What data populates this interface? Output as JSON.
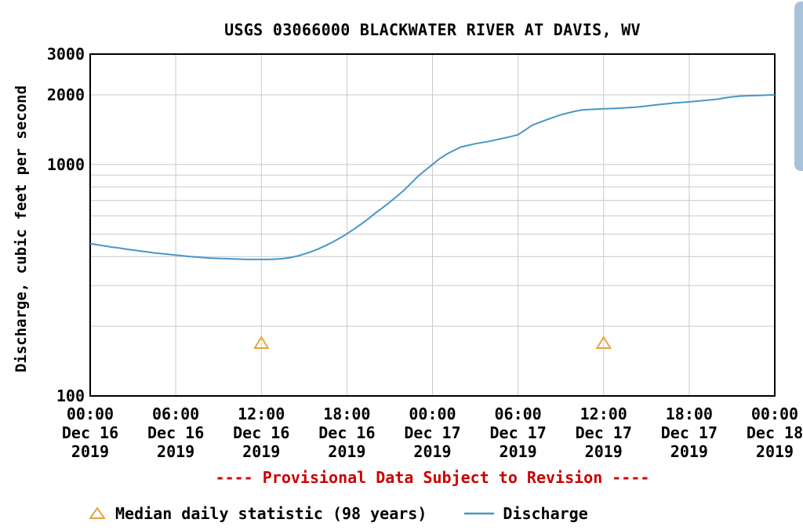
{
  "colors": {
    "background": "#ffffff",
    "text": "#000000",
    "axis": "#000000",
    "grid": "#c9c9c9",
    "discharge_line": "#4896c8",
    "median_marker": "#e8a43f",
    "provisional_red": "#cc0000",
    "scrollbar_thumb": "#a9c2db"
  },
  "provisional_note": "---- Provisional Data Subject to Revision ----",
  "scrollbar": {
    "present": true
  },
  "chart_data": {
    "type": "line",
    "title": "USGS 03066000 BLACKWATER RIVER AT DAVIS, WV",
    "xlabel": "",
    "ylabel": "Discharge, cubic feet per second",
    "yscale": "log",
    "ylim": [
      100,
      3000
    ],
    "x_range_hours": [
      0,
      48
    ],
    "grid": true,
    "legend_position": "bottom",
    "y_tick_labels": [
      {
        "value": 3000,
        "label": "3000"
      },
      {
        "value": 2000,
        "label": "2000"
      },
      {
        "value": 1000,
        "label": "1000"
      },
      {
        "value": 100,
        "label": "100"
      }
    ],
    "y_gridlines": [
      200,
      300,
      400,
      500,
      600,
      700,
      800,
      900,
      1000,
      2000
    ],
    "x_ticks": [
      {
        "hour": 0,
        "time": "00:00",
        "date": "Dec 16",
        "year": "2019"
      },
      {
        "hour": 6,
        "time": "06:00",
        "date": "Dec 16",
        "year": "2019"
      },
      {
        "hour": 12,
        "time": "12:00",
        "date": "Dec 16",
        "year": "2019"
      },
      {
        "hour": 18,
        "time": "18:00",
        "date": "Dec 16",
        "year": "2019"
      },
      {
        "hour": 24,
        "time": "00:00",
        "date": "Dec 17",
        "year": "2019"
      },
      {
        "hour": 30,
        "time": "06:00",
        "date": "Dec 17",
        "year": "2019"
      },
      {
        "hour": 36,
        "time": "12:00",
        "date": "Dec 17",
        "year": "2019"
      },
      {
        "hour": 42,
        "time": "18:00",
        "date": "Dec 17",
        "year": "2019"
      },
      {
        "hour": 48,
        "time": "00:00",
        "date": "Dec 18",
        "year": "2019"
      }
    ],
    "series": [
      {
        "name": "Discharge",
        "marker": "line",
        "color": "#4896c8",
        "units": "cubic feet per second",
        "points": [
          [
            0,
            455
          ],
          [
            0.5,
            450
          ],
          [
            1,
            445
          ],
          [
            1.5,
            440
          ],
          [
            2,
            436
          ],
          [
            2.5,
            431
          ],
          [
            3,
            427
          ],
          [
            3.5,
            423
          ],
          [
            4,
            419
          ],
          [
            4.5,
            415
          ],
          [
            5,
            412
          ],
          [
            5.5,
            409
          ],
          [
            6,
            406
          ],
          [
            6.5,
            403
          ],
          [
            7,
            400
          ],
          [
            7.5,
            398
          ],
          [
            8,
            396
          ],
          [
            8.5,
            394
          ],
          [
            9,
            393
          ],
          [
            9.5,
            392
          ],
          [
            10,
            391
          ],
          [
            10.5,
            390
          ],
          [
            11,
            389
          ],
          [
            11.5,
            389
          ],
          [
            12,
            389
          ],
          [
            12.5,
            389
          ],
          [
            13,
            390
          ],
          [
            13.5,
            392
          ],
          [
            14,
            396
          ],
          [
            14.5,
            402
          ],
          [
            15,
            410
          ],
          [
            15.5,
            420
          ],
          [
            16,
            432
          ],
          [
            16.5,
            446
          ],
          [
            17,
            462
          ],
          [
            17.5,
            481
          ],
          [
            18,
            502
          ],
          [
            18.5,
            526
          ],
          [
            19,
            553
          ],
          [
            19.5,
            583
          ],
          [
            20,
            617
          ],
          [
            20.5,
            650
          ],
          [
            21,
            687
          ],
          [
            21.5,
            728
          ],
          [
            22,
            774
          ],
          [
            22.5,
            830
          ],
          [
            23,
            891
          ],
          [
            23.5,
            945
          ],
          [
            24,
            1000
          ],
          [
            24.5,
            1060
          ],
          [
            25,
            1110
          ],
          [
            25.5,
            1150
          ],
          [
            26,
            1190
          ],
          [
            26.5,
            1210
          ],
          [
            27,
            1230
          ],
          [
            27.5,
            1245
          ],
          [
            28,
            1260
          ],
          [
            28.5,
            1280
          ],
          [
            29,
            1300
          ],
          [
            29.5,
            1320
          ],
          [
            30,
            1345
          ],
          [
            30.5,
            1410
          ],
          [
            31,
            1480
          ],
          [
            31.5,
            1520
          ],
          [
            32,
            1560
          ],
          [
            32.5,
            1600
          ],
          [
            33,
            1640
          ],
          [
            33.5,
            1670
          ],
          [
            34,
            1700
          ],
          [
            34.5,
            1720
          ],
          [
            35,
            1730
          ],
          [
            35.5,
            1735
          ],
          [
            36,
            1740
          ],
          [
            36.5,
            1745
          ],
          [
            37,
            1750
          ],
          [
            37.5,
            1757
          ],
          [
            38,
            1765
          ],
          [
            38.5,
            1775
          ],
          [
            39,
            1790
          ],
          [
            39.5,
            1805
          ],
          [
            40,
            1820
          ],
          [
            40.5,
            1833
          ],
          [
            41,
            1845
          ],
          [
            41.5,
            1855
          ],
          [
            42,
            1865
          ],
          [
            42.5,
            1877
          ],
          [
            43,
            1890
          ],
          [
            43.5,
            1902
          ],
          [
            44,
            1915
          ],
          [
            44.5,
            1940
          ],
          [
            45,
            1960
          ],
          [
            45.5,
            1975
          ],
          [
            46,
            1980
          ],
          [
            46.5,
            1985
          ],
          [
            47,
            1990
          ],
          [
            47.5,
            1995
          ],
          [
            48,
            2000
          ]
        ]
      },
      {
        "name": "Median daily statistic (98 years)",
        "marker": "triangle",
        "color": "#e8a43f",
        "units": "cubic feet per second",
        "points": [
          [
            12,
            170
          ],
          [
            36,
            170
          ]
        ]
      }
    ]
  }
}
